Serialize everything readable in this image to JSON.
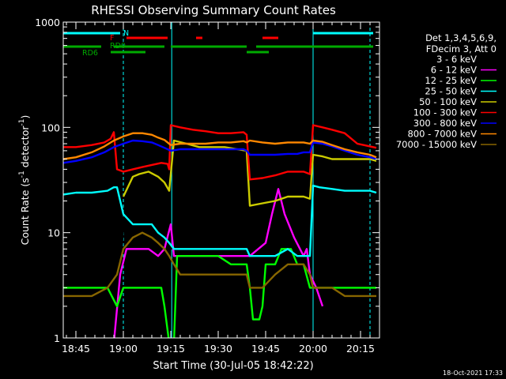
{
  "chart_data": {
    "type": "line",
    "title": "RHESSI Observing Summary Count Rates",
    "xlabel": "Start Time (30-Jul-05 18:42:22)",
    "ylabel_main": "Count Rate (s",
    "ylabel_sup1": "-1",
    "ylabel_mid": " detector",
    "ylabel_sup2": "-1",
    "ylabel_end": ")",
    "yscale": "log",
    "ylim": [
      1,
      1000
    ],
    "xlim_minutes": [
      -19,
      21
    ],
    "x_unit": "minutes relative to 19:00 UT on 30-Jul-05",
    "x_ticks": [
      {
        "m": -15,
        "label": "18:45"
      },
      {
        "m": 0,
        "label": "19:00"
      },
      {
        "m": 15,
        "label": "19:15"
      },
      {
        "m": 30,
        "label": "19:30"
      },
      {
        "m": 45,
        "label": "19:45"
      },
      {
        "m": 60,
        "label": "20:00"
      },
      {
        "m": 75,
        "label": "20:15"
      }
    ],
    "y_ticks": [
      {
        "v": 1,
        "label": "1"
      },
      {
        "v": 10,
        "label": "10"
      },
      {
        "v": 100,
        "label": "100"
      },
      {
        "v": 1000,
        "label": "1000"
      }
    ],
    "timestamp": "18-Oct-2021 17:33",
    "legend_title_1": "Det 1,3,4,5,6,9,",
    "legend_title_2": "FDecim 3, Att 0",
    "grid": false,
    "legend_position": "right, outside plot",
    "series": [
      {
        "name": "3 - 6 keV",
        "color": "#000000",
        "values": [
          [
            -19,
            0.9
          ],
          [
            -3,
            0.9
          ],
          [
            -1.5,
            1.4
          ],
          [
            0,
            14
          ],
          [
            3,
            13
          ],
          [
            6,
            12
          ],
          [
            9,
            12
          ],
          [
            11,
            10
          ],
          [
            13,
            9
          ],
          [
            15,
            7
          ],
          [
            18,
            8
          ],
          [
            21,
            8
          ],
          [
            25,
            7
          ],
          [
            30,
            7
          ],
          [
            35,
            7
          ],
          [
            40,
            6
          ],
          [
            44,
            7
          ],
          [
            47,
            13
          ],
          [
            50,
            22
          ],
          [
            52,
            16
          ],
          [
            55,
            11
          ],
          [
            57,
            9
          ],
          [
            58.7,
            7
          ]
        ]
      },
      {
        "name": "6 - 12 keV",
        "color": "#ff00ff",
        "values": [
          [
            -19,
            0.9
          ],
          [
            -3,
            0.9
          ],
          [
            -1,
            4
          ],
          [
            1,
            7
          ],
          [
            4,
            7
          ],
          [
            8,
            7
          ],
          [
            11,
            6
          ],
          [
            13,
            7
          ],
          [
            15,
            12
          ],
          [
            16,
            6
          ],
          [
            18,
            6
          ],
          [
            22,
            6
          ],
          [
            26,
            6
          ],
          [
            30,
            6
          ],
          [
            35,
            6
          ],
          [
            40,
            6
          ],
          [
            45,
            8
          ],
          [
            47,
            15
          ],
          [
            49,
            26
          ],
          [
            51,
            15
          ],
          [
            54,
            9
          ],
          [
            57,
            6
          ],
          [
            58,
            7
          ],
          [
            59,
            4
          ],
          [
            61,
            3
          ],
          [
            63,
            2
          ]
        ]
      },
      {
        "name": "12 - 25 keV",
        "color": "#00ff00",
        "values": [
          [
            -19,
            3
          ],
          [
            -15,
            3
          ],
          [
            -10,
            3
          ],
          [
            -5,
            3
          ],
          [
            -2,
            2
          ],
          [
            0,
            3
          ],
          [
            4,
            3
          ],
          [
            8,
            3
          ],
          [
            12,
            3
          ],
          [
            13,
            2
          ],
          [
            14.5,
            0.9
          ],
          [
            16,
            0.9
          ],
          [
            17,
            6
          ],
          [
            21,
            6
          ],
          [
            26,
            6
          ],
          [
            30,
            6
          ],
          [
            34,
            5
          ],
          [
            39,
            5
          ],
          [
            40,
            3
          ],
          [
            41,
            1.5
          ],
          [
            43,
            1.5
          ],
          [
            44,
            2
          ],
          [
            45,
            5
          ],
          [
            48,
            5
          ],
          [
            50,
            7
          ],
          [
            53,
            7
          ],
          [
            55,
            5
          ],
          [
            57,
            5
          ],
          [
            59,
            3
          ],
          [
            62,
            3
          ],
          [
            66,
            3
          ],
          [
            70,
            3
          ],
          [
            75,
            3
          ],
          [
            78,
            3
          ],
          [
            80,
            3
          ]
        ]
      },
      {
        "name": "25 - 50 keV",
        "color": "#00ffff",
        "values": [
          [
            -19,
            23
          ],
          [
            -15,
            24
          ],
          [
            -10,
            24
          ],
          [
            -5,
            25
          ],
          [
            -3,
            27
          ],
          [
            -2,
            27
          ],
          [
            0,
            15
          ],
          [
            3,
            12
          ],
          [
            6,
            12
          ],
          [
            9,
            12
          ],
          [
            11,
            10
          ],
          [
            13,
            9
          ],
          [
            14.5,
            8
          ],
          [
            16,
            7
          ],
          [
            18,
            7
          ],
          [
            22,
            7
          ],
          [
            26,
            7
          ],
          [
            30,
            7
          ],
          [
            35,
            7
          ],
          [
            39,
            7
          ],
          [
            40,
            6
          ],
          [
            44,
            6
          ],
          [
            48,
            6
          ],
          [
            52,
            7
          ],
          [
            55,
            6
          ],
          [
            57,
            6
          ],
          [
            59,
            6
          ],
          [
            60,
            28
          ],
          [
            62,
            27
          ],
          [
            66,
            26
          ],
          [
            70,
            25
          ],
          [
            75,
            25
          ],
          [
            78,
            25
          ],
          [
            80,
            24
          ]
        ]
      },
      {
        "name": "50 - 100 keV",
        "color": "#cccc00",
        "values": [
          [
            0,
            22
          ],
          [
            3,
            34
          ],
          [
            5,
            36
          ],
          [
            8,
            38
          ],
          [
            11,
            34
          ],
          [
            13,
            30
          ],
          [
            14.5,
            25
          ],
          [
            16,
            75
          ],
          [
            20,
            70
          ],
          [
            24,
            65
          ],
          [
            28,
            65
          ],
          [
            32,
            65
          ],
          [
            36,
            62
          ],
          [
            39,
            60
          ],
          [
            40,
            18
          ],
          [
            44,
            19
          ],
          [
            48,
            20
          ],
          [
            52,
            22
          ],
          [
            55,
            22
          ],
          [
            57,
            22
          ],
          [
            59,
            21
          ],
          [
            60,
            55
          ],
          [
            63,
            53
          ],
          [
            66,
            50
          ],
          [
            70,
            50
          ],
          [
            74,
            50
          ],
          [
            78,
            50
          ],
          [
            80,
            48
          ]
        ]
      },
      {
        "name": "100 - 300 keV",
        "color": "#ff0000",
        "values": [
          [
            -19,
            65
          ],
          [
            -15,
            65
          ],
          [
            -10,
            68
          ],
          [
            -6,
            72
          ],
          [
            -4,
            78
          ],
          [
            -3,
            90
          ],
          [
            -2,
            40
          ],
          [
            0,
            38
          ],
          [
            3,
            40
          ],
          [
            6,
            42
          ],
          [
            9,
            44
          ],
          [
            12,
            46
          ],
          [
            14,
            45
          ],
          [
            14.5,
            40
          ],
          [
            15,
            105
          ],
          [
            18,
            100
          ],
          [
            22,
            95
          ],
          [
            26,
            92
          ],
          [
            30,
            88
          ],
          [
            34,
            88
          ],
          [
            38,
            90
          ],
          [
            39,
            85
          ],
          [
            40,
            32
          ],
          [
            44,
            33
          ],
          [
            48,
            35
          ],
          [
            52,
            38
          ],
          [
            55,
            38
          ],
          [
            57,
            38
          ],
          [
            59,
            36
          ],
          [
            60,
            105
          ],
          [
            63,
            100
          ],
          [
            66,
            95
          ],
          [
            70,
            88
          ],
          [
            74,
            70
          ],
          [
            76,
            68
          ],
          [
            78,
            66
          ],
          [
            80,
            64
          ]
        ]
      },
      {
        "name": "300 - 800 keV",
        "color": "#0000ff",
        "values": [
          [
            -19,
            46
          ],
          [
            -15,
            48
          ],
          [
            -10,
            52
          ],
          [
            -6,
            58
          ],
          [
            -3,
            65
          ],
          [
            0,
            70
          ],
          [
            3,
            75
          ],
          [
            6,
            74
          ],
          [
            9,
            72
          ],
          [
            11,
            68
          ],
          [
            13,
            64
          ],
          [
            15,
            60
          ],
          [
            18,
            62
          ],
          [
            22,
            62
          ],
          [
            26,
            62
          ],
          [
            30,
            62
          ],
          [
            34,
            62
          ],
          [
            38,
            62
          ],
          [
            39,
            60
          ],
          [
            40,
            55
          ],
          [
            44,
            55
          ],
          [
            48,
            55
          ],
          [
            52,
            56
          ],
          [
            55,
            56
          ],
          [
            57,
            58
          ],
          [
            59,
            58
          ],
          [
            60,
            72
          ],
          [
            63,
            70
          ],
          [
            66,
            66
          ],
          [
            70,
            60
          ],
          [
            74,
            55
          ],
          [
            78,
            52
          ],
          [
            80,
            50
          ]
        ]
      },
      {
        "name": "800 - 7000 keV",
        "color": "#ff8800",
        "values": [
          [
            -19,
            50
          ],
          [
            -15,
            52
          ],
          [
            -10,
            58
          ],
          [
            -6,
            66
          ],
          [
            -3,
            75
          ],
          [
            0,
            82
          ],
          [
            3,
            88
          ],
          [
            6,
            88
          ],
          [
            9,
            85
          ],
          [
            11,
            80
          ],
          [
            13,
            76
          ],
          [
            15,
            68
          ],
          [
            18,
            70
          ],
          [
            22,
            70
          ],
          [
            26,
            70
          ],
          [
            30,
            72
          ],
          [
            34,
            72
          ],
          [
            38,
            74
          ],
          [
            39,
            72
          ],
          [
            40,
            75
          ],
          [
            44,
            72
          ],
          [
            48,
            70
          ],
          [
            52,
            72
          ],
          [
            55,
            72
          ],
          [
            57,
            72
          ],
          [
            59,
            70
          ],
          [
            60,
            75
          ],
          [
            63,
            73
          ],
          [
            66,
            68
          ],
          [
            70,
            62
          ],
          [
            74,
            58
          ],
          [
            78,
            55
          ],
          [
            80,
            52
          ]
        ]
      },
      {
        "name": "7000 - 15000 keV",
        "color": "#886600",
        "values": [
          [
            -19,
            2.5
          ],
          [
            -15,
            2.5
          ],
          [
            -10,
            2.5
          ],
          [
            -5,
            3
          ],
          [
            -2,
            4
          ],
          [
            0,
            7
          ],
          [
            3,
            9
          ],
          [
            6,
            10
          ],
          [
            9,
            9
          ],
          [
            11,
            8
          ],
          [
            13,
            7
          ],
          [
            14.5,
            6
          ],
          [
            16,
            5
          ],
          [
            18,
            4
          ],
          [
            22,
            4
          ],
          [
            26,
            4
          ],
          [
            30,
            4
          ],
          [
            34,
            4
          ],
          [
            38,
            4
          ],
          [
            39,
            4
          ],
          [
            40,
            3
          ],
          [
            44,
            3
          ],
          [
            48,
            4
          ],
          [
            52,
            5
          ],
          [
            55,
            5
          ],
          [
            57,
            5
          ],
          [
            59,
            4
          ],
          [
            60,
            3
          ],
          [
            63,
            3
          ],
          [
            66,
            3
          ],
          [
            70,
            2.5
          ],
          [
            74,
            2.5
          ],
          [
            78,
            2.5
          ],
          [
            80,
            2.5
          ]
        ]
      }
    ],
    "flag_bars": [
      {
        "label": "N",
        "color": "#00ffff",
        "segments": [
          [
            -19,
            -1
          ],
          [
            60,
            79
          ]
        ]
      },
      {
        "label": "F",
        "color": "#ff0000",
        "segments": [
          [
            1,
            14
          ],
          [
            23,
            25
          ],
          [
            44,
            49
          ]
        ]
      },
      {
        "label": "RD0",
        "color": "#00aa00",
        "segments": [
          [
            -19,
            -7
          ],
          [
            -3,
            13
          ],
          [
            15,
            39
          ],
          [
            42,
            79
          ]
        ]
      },
      {
        "label": "RD6",
        "color": "#00aa00",
        "segments": [
          [
            -4,
            7
          ],
          [
            39,
            46
          ]
        ]
      }
    ],
    "cyan_solid_lines": [
      -19,
      15.3,
      60
    ],
    "cyan_dashed_lines": [
      0,
      78
    ]
  }
}
